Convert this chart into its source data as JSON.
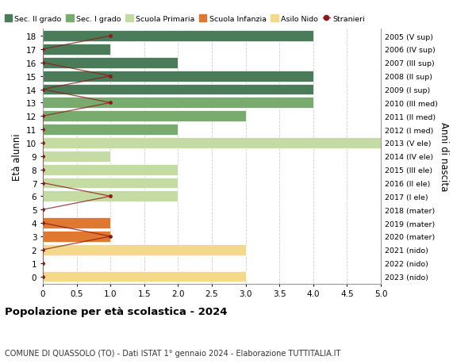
{
  "ages": [
    0,
    1,
    2,
    3,
    4,
    5,
    6,
    7,
    8,
    9,
    10,
    11,
    12,
    13,
    14,
    15,
    16,
    17,
    18
  ],
  "years": [
    "2023 (nido)",
    "2022 (nido)",
    "2021 (nido)",
    "2020 (mater)",
    "2019 (mater)",
    "2018 (mater)",
    "2017 (I ele)",
    "2016 (II ele)",
    "2015 (III ele)",
    "2014 (IV ele)",
    "2013 (V ele)",
    "2012 (I med)",
    "2011 (II med)",
    "2010 (III med)",
    "2009 (I sup)",
    "2008 (II sup)",
    "2007 (III sup)",
    "2006 (IV sup)",
    "2005 (V sup)"
  ],
  "bar_values": [
    3,
    0,
    3,
    1,
    1,
    0,
    2,
    2,
    2,
    1,
    5,
    2,
    3,
    4,
    4,
    4,
    2,
    1,
    4
  ],
  "stranieri_x": [
    0,
    0,
    0,
    1,
    0,
    0,
    1,
    0,
    0,
    0,
    0,
    0,
    0,
    1,
    0,
    1,
    0,
    0,
    1
  ],
  "color_sec2": "#4a7c59",
  "color_sec1": "#7aab6e",
  "color_primaria": "#c5dba4",
  "color_infanzia": "#e07830",
  "color_nido": "#f5d98b",
  "color_stranieri": "#8b1a1a",
  "ages_sec2": [
    14,
    15,
    16,
    17,
    18
  ],
  "ages_sec1": [
    11,
    12,
    13
  ],
  "ages_primaria": [
    6,
    7,
    8,
    9,
    10
  ],
  "ages_infanzia": [
    3,
    4,
    5
  ],
  "ages_nido": [
    0,
    1,
    2
  ],
  "title": "Popolazione per età scolastica - 2024",
  "subtitle": "COMUNE DI QUASSOLO (TO) - Dati ISTAT 1° gennaio 2024 - Elaborazione TUTTITALIA.IT",
  "ylabel_left": "Età alunni",
  "ylabel_right": "Anni di nascita",
  "xlim": [
    0,
    5.0
  ],
  "xticks": [
    0,
    0.5,
    1.0,
    1.5,
    2.0,
    2.5,
    3.0,
    3.5,
    4.0,
    4.5,
    5.0
  ],
  "xtick_labels": [
    "0",
    "0.5",
    "1.0",
    "1.5",
    "2.0",
    "2.5",
    "3.0",
    "3.5",
    "4.0",
    "4.5",
    "5.0"
  ],
  "grid_color": "#cccccc",
  "bar_height": 0.82
}
